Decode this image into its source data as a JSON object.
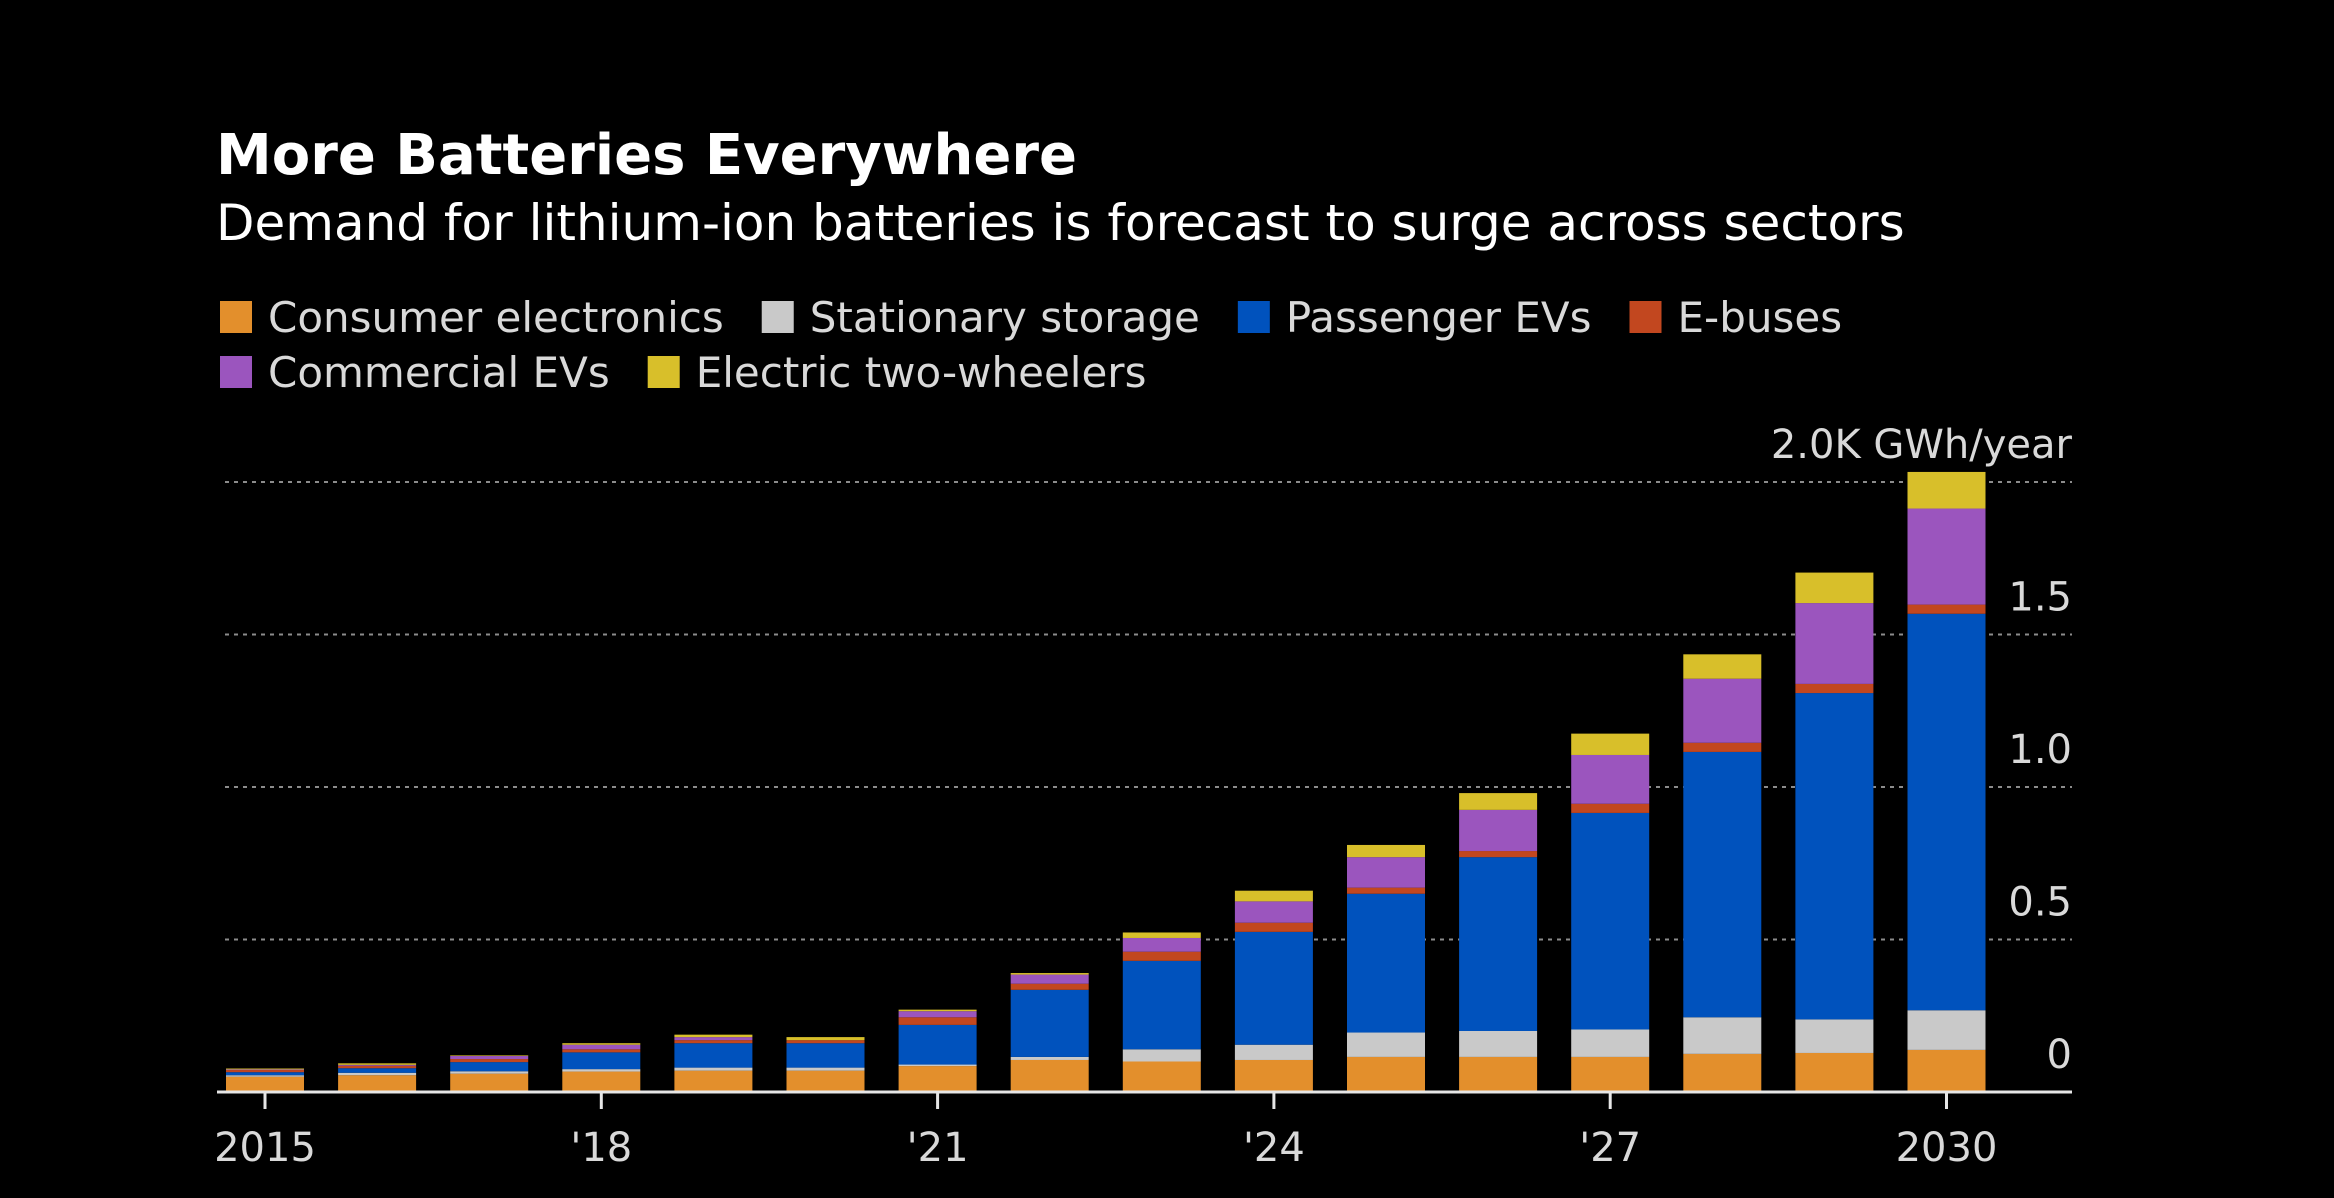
{
  "chart_data": {
    "type": "bar",
    "stacked": true,
    "title": "More Batteries Everywhere",
    "subtitle": "Demand for lithium-ion batteries is forecast to surge across sectors",
    "unit_label": "2.0K GWh/year",
    "categories": [
      "2015",
      "2016",
      "2017",
      "2018",
      "2019",
      "2020",
      "2021",
      "2022",
      "2023",
      "2024",
      "2025",
      "2026",
      "2027",
      "2028",
      "2029",
      "2030"
    ],
    "x_tick_labels": [
      {
        "category": "2015",
        "label": "2015"
      },
      {
        "category": "2018",
        "label": "'18"
      },
      {
        "category": "2021",
        "label": "'21"
      },
      {
        "category": "2024",
        "label": "'24"
      },
      {
        "category": "2027",
        "label": "'27"
      },
      {
        "category": "2030",
        "label": "2030"
      }
    ],
    "y_ticks": [
      {
        "value": 0,
        "label": "0"
      },
      {
        "value": 0.5,
        "label": "0.5"
      },
      {
        "value": 1.0,
        "label": "1.0"
      },
      {
        "value": 1.5,
        "label": "1.5"
      },
      {
        "value": 2.0,
        "label": "2.0K GWh/year"
      }
    ],
    "ylim": [
      0,
      2.0
    ],
    "grid": true,
    "legend_position": "top-left",
    "series": [
      {
        "name": "Consumer electronics",
        "color": "#e38f2c",
        "values": [
          0.05,
          0.055,
          0.06,
          0.067,
          0.07,
          0.07,
          0.085,
          0.105,
          0.1,
          0.105,
          0.115,
          0.115,
          0.115,
          0.125,
          0.128,
          0.138
        ]
      },
      {
        "name": "Stationary storage",
        "color": "#c9c9c9",
        "values": [
          0.005,
          0.008,
          0.008,
          0.008,
          0.01,
          0.01,
          0.005,
          0.01,
          0.04,
          0.05,
          0.08,
          0.085,
          0.09,
          0.12,
          0.11,
          0.13
        ]
      },
      {
        "name": "Passenger EVs",
        "color": "#0052bd",
        "values": [
          0.01,
          0.015,
          0.03,
          0.055,
          0.08,
          0.08,
          0.13,
          0.22,
          0.29,
          0.37,
          0.455,
          0.57,
          0.71,
          0.87,
          1.07,
          1.3
        ]
      },
      {
        "name": "E-buses",
        "color": "#c2471f",
        "values": [
          0.007,
          0.008,
          0.01,
          0.01,
          0.01,
          0.01,
          0.025,
          0.02,
          0.03,
          0.03,
          0.02,
          0.02,
          0.03,
          0.03,
          0.03,
          0.03
        ]
      },
      {
        "name": "Commercial EVs",
        "color": "#9b55be",
        "values": [
          0.002,
          0.003,
          0.01,
          0.015,
          0.01,
          0.0,
          0.02,
          0.03,
          0.045,
          0.07,
          0.1,
          0.135,
          0.16,
          0.21,
          0.265,
          0.315
        ]
      },
      {
        "name": "Electric two-wheelers",
        "color": "#d8bf2a",
        "values": [
          0.003,
          0.005,
          0.002,
          0.005,
          0.008,
          0.01,
          0.005,
          0.005,
          0.018,
          0.035,
          0.04,
          0.055,
          0.07,
          0.08,
          0.1,
          0.12
        ]
      }
    ]
  }
}
